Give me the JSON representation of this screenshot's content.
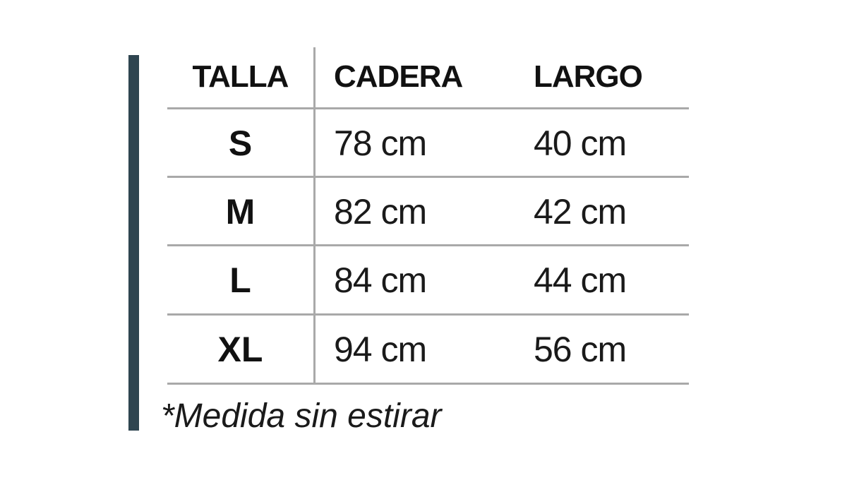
{
  "table": {
    "headers": [
      "TALLA",
      "CADERA",
      "LARGO"
    ],
    "rows": [
      {
        "talla": "S",
        "cadera": "78 cm",
        "largo": "40 cm"
      },
      {
        "talla": "M",
        "cadera": "82 cm",
        "largo": "42 cm"
      },
      {
        "talla": "L",
        "cadera": "84 cm",
        "largo": "44 cm"
      },
      {
        "talla": "XL",
        "cadera": "94 cm",
        "largo": "56 cm"
      }
    ]
  },
  "footnote": "*Medida sin estirar",
  "colors": {
    "accent_bar": "#2f4550",
    "grid": "#a9a9a9"
  }
}
